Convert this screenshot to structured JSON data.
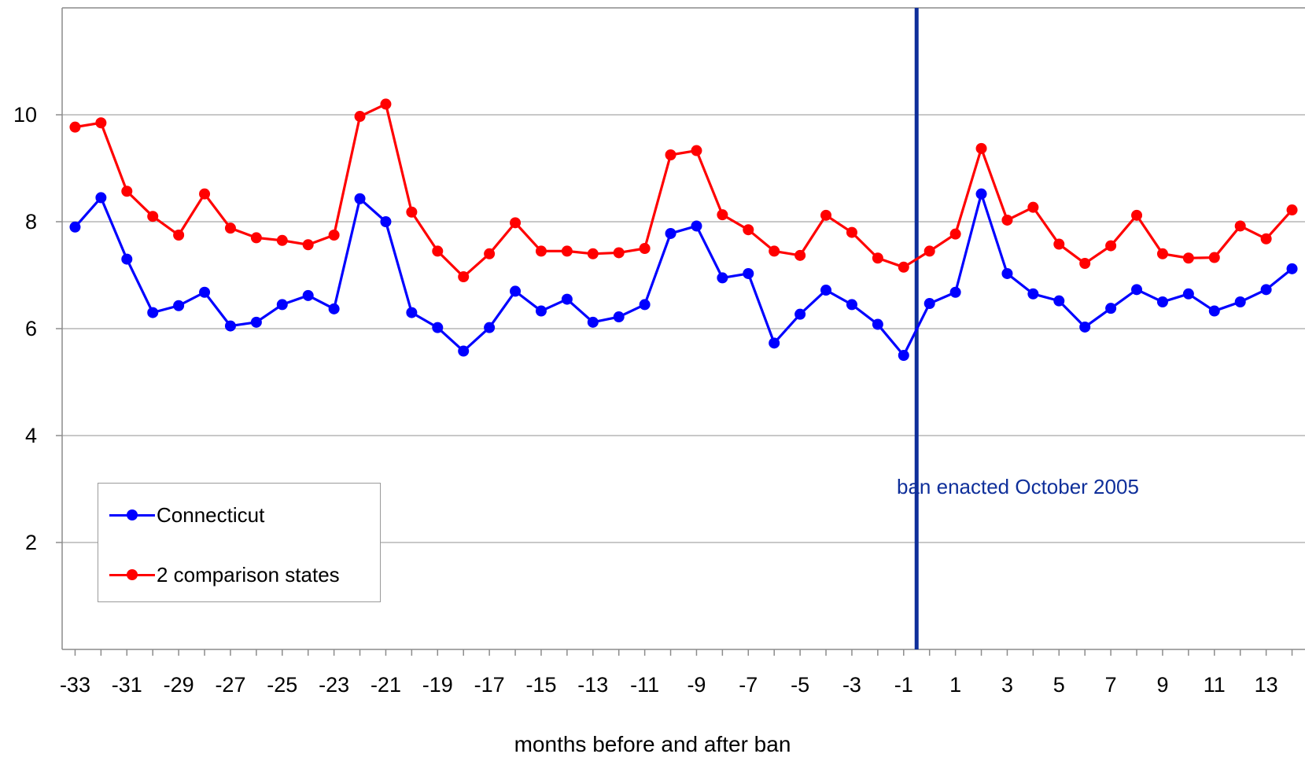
{
  "chart_data": {
    "type": "line",
    "xlabel": "months before and after ban",
    "ylabel": "",
    "title": "",
    "xlim": [
      -33.5,
      14.5
    ],
    "ylim": [
      0,
      12
    ],
    "y_ticks": [
      2,
      4,
      6,
      8,
      10
    ],
    "x_ticks": [
      -33,
      -31,
      -29,
      -27,
      -25,
      -23,
      -21,
      -19,
      -17,
      -15,
      -13,
      -11,
      -9,
      -7,
      -5,
      -3,
      -1,
      1,
      3,
      5,
      7,
      9,
      11,
      13
    ],
    "grid": "horizontal",
    "legend_position": "bottom-left",
    "x": [
      -33,
      -32,
      -31,
      -30,
      -29,
      -28,
      -27,
      -26,
      -25,
      -24,
      -23,
      -22,
      -21,
      -20,
      -19,
      -18,
      -17,
      -16,
      -15,
      -14,
      -13,
      -12,
      -11,
      -10,
      -9,
      -8,
      -7,
      -6,
      -5,
      -4,
      -3,
      -2,
      -1,
      0,
      1,
      2,
      3,
      4,
      5,
      6,
      7,
      8,
      9,
      10,
      11,
      12,
      13,
      14
    ],
    "series": [
      {
        "name": "Connecticut",
        "color": "#0000ff",
        "values": [
          7.9,
          8.45,
          7.3,
          6.3,
          6.43,
          6.68,
          6.05,
          6.12,
          6.45,
          6.62,
          6.37,
          8.43,
          8.0,
          6.3,
          6.02,
          5.58,
          6.02,
          6.7,
          6.33,
          6.55,
          6.12,
          6.22,
          6.45,
          7.78,
          7.92,
          6.95,
          7.03,
          5.73,
          6.27,
          6.72,
          6.45,
          6.08,
          5.5,
          6.47,
          6.68,
          8.52,
          7.03,
          6.65,
          6.52,
          6.03,
          6.38,
          6.73,
          6.5,
          6.65,
          6.33,
          6.5,
          6.73,
          7.12
        ]
      },
      {
        "name": "2 comparison states",
        "color": "#ff0000",
        "values": [
          9.77,
          9.85,
          8.57,
          8.1,
          7.75,
          8.52,
          7.88,
          7.7,
          7.65,
          7.57,
          7.75,
          9.97,
          10.2,
          8.18,
          7.45,
          6.97,
          7.4,
          7.98,
          7.45,
          7.45,
          7.4,
          7.42,
          7.5,
          9.25,
          9.33,
          8.13,
          7.85,
          7.45,
          7.37,
          8.12,
          7.8,
          7.32,
          7.15,
          7.45,
          7.77,
          9.37,
          8.03,
          8.27,
          7.58,
          7.22,
          7.55,
          8.12,
          7.4,
          7.32,
          7.33,
          7.92,
          7.68,
          8.22
        ]
      }
    ],
    "annotation": {
      "text": "ban enacted October 2005",
      "x": -0.5,
      "color": "#0f2f9a"
    },
    "axis_color": "#8c8c8c",
    "grid_color": "#a6a6a6"
  }
}
